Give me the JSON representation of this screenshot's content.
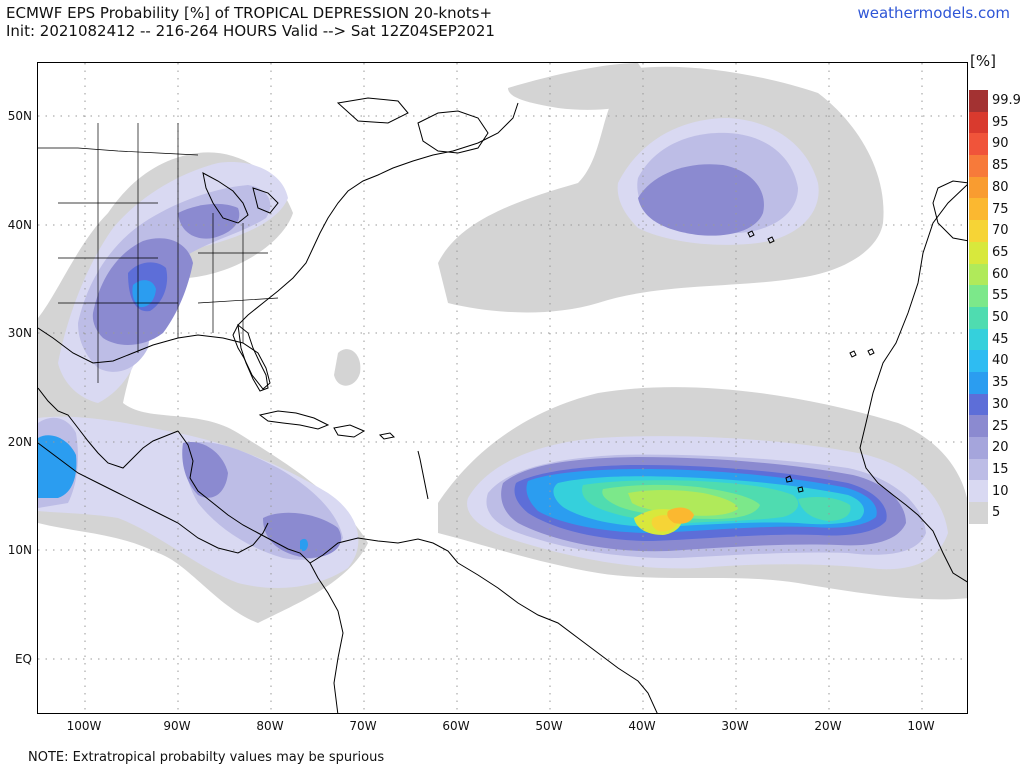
{
  "header": {
    "title_line1": "ECMWF EPS Probability [%] of TROPICAL DEPRESSION 20-knots+",
    "title_line2": "Init: 2021082412 -- 216-264 HOURS Valid --> Sat 12Z04SEP2021",
    "site": "weathermodels.com"
  },
  "footer": {
    "note": "NOTE: Extratropical probabilty values may be spurious"
  },
  "axes": {
    "lat_labels": [
      "50N",
      "40N",
      "30N",
      "20N",
      "10N",
      "EQ"
    ],
    "lon_labels": [
      "100W",
      "90W",
      "80W",
      "70W",
      "60W",
      "50W",
      "40W",
      "30W",
      "20W",
      "10W"
    ]
  },
  "colorbar": {
    "unit": "[%]",
    "levels": [
      "99.9",
      "95",
      "90",
      "85",
      "80",
      "75",
      "70",
      "65",
      "60",
      "55",
      "50",
      "45",
      "40",
      "35",
      "30",
      "25",
      "20",
      "15",
      "10",
      "5"
    ],
    "colors": [
      "#a33232",
      "#d93a2e",
      "#f0543a",
      "#f77a3a",
      "#f99c30",
      "#fbb830",
      "#f6d436",
      "#d8e83c",
      "#b0ea5a",
      "#7ce88a",
      "#4fdcb0",
      "#35d0dc",
      "#2ebcf2",
      "#2b9df0",
      "#5d6ed8",
      "#8b8ad0",
      "#a5a5dc",
      "#bdbde6",
      "#d9d9f2",
      "#d4d4d4"
    ]
  },
  "map_colors": {
    "p5": "#d4d4d4",
    "p10": "#d9d9f2",
    "p15": "#bdbde6",
    "p20": "#a5a5dc",
    "p25": "#8b8ad0",
    "p30": "#5d6ed8",
    "p35": "#2b9df0",
    "p40": "#2ebcf2",
    "p45": "#35d0dc",
    "p50": "#4fdcb0",
    "p55": "#7ce88a",
    "p60": "#b0ea5a",
    "p65": "#d8e83c",
    "p70": "#f6d436",
    "p75": "#fbb830"
  }
}
